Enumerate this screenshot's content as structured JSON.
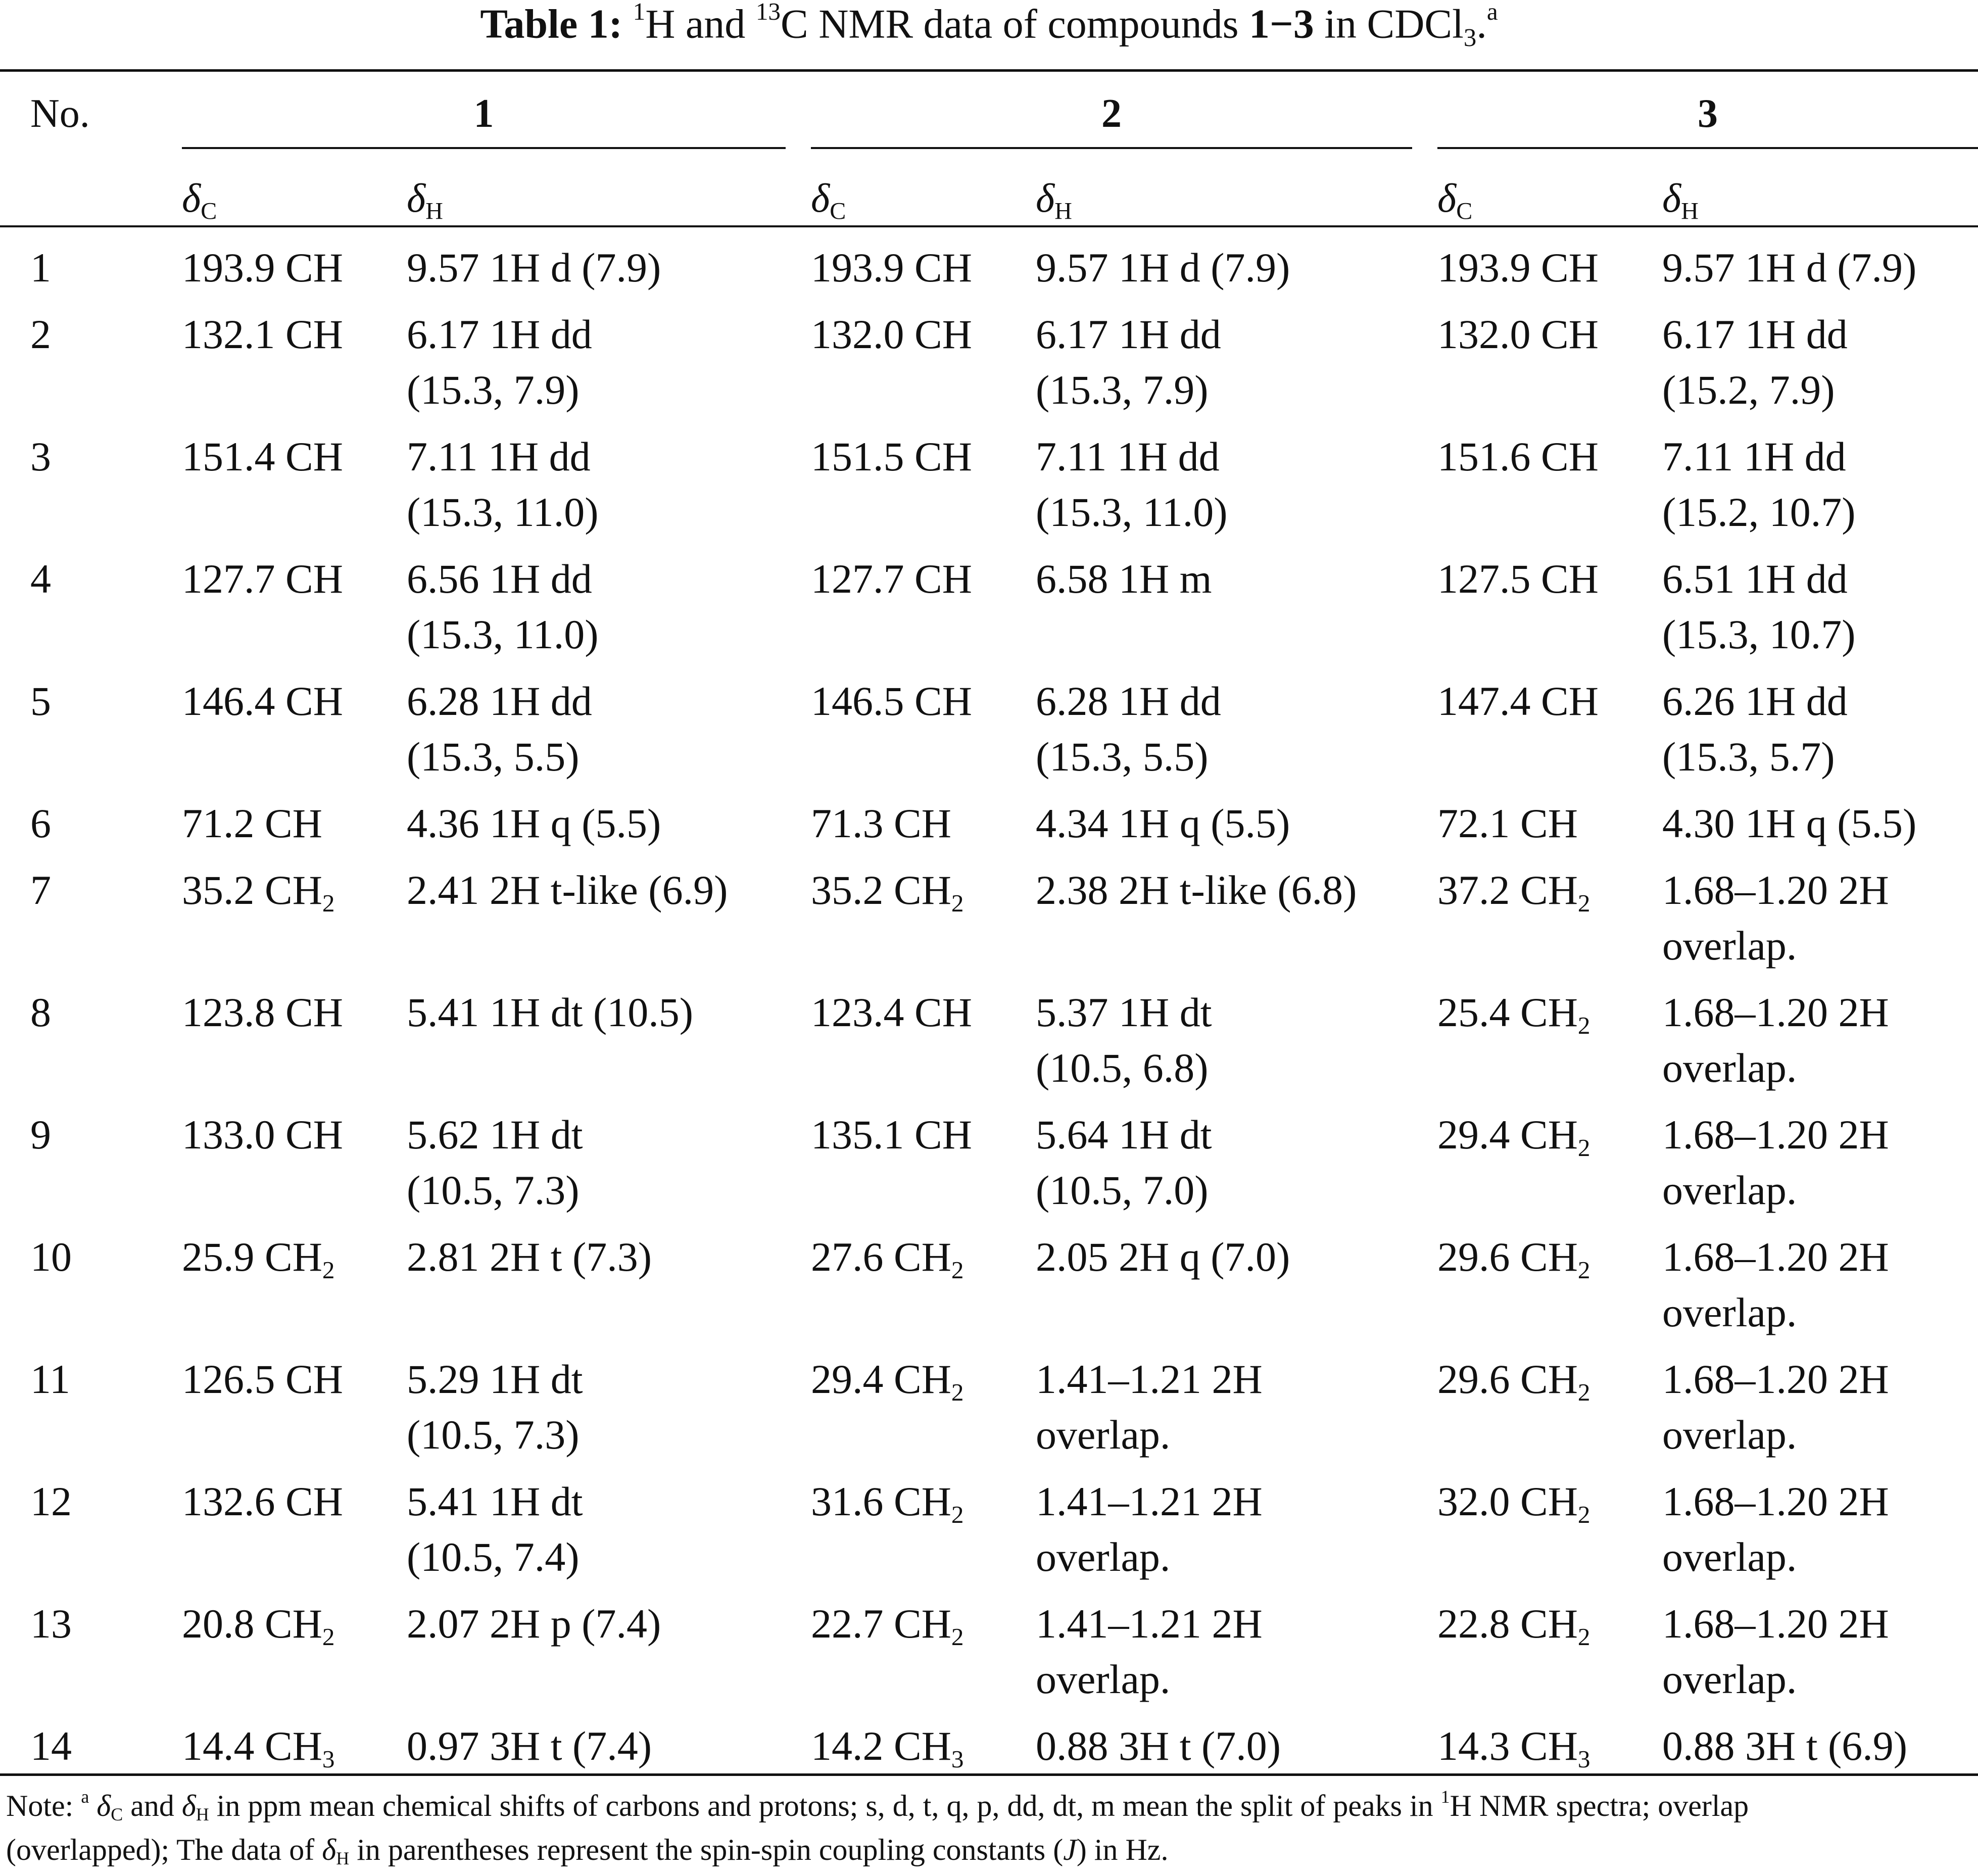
{
  "title": {
    "label": "Table 1:",
    "sup1": "1",
    "h_and": "H and ",
    "sup13": "13",
    "rest": "C NMR data of compounds ",
    "compounds": "1−3",
    "in": " in CDCl",
    "sub3": "3",
    "dot": ".",
    "fn": "a"
  },
  "header": {
    "no": "No.",
    "groups": [
      "1",
      "2",
      "3"
    ],
    "delta_symbol": "δ",
    "delta_c_sub": "C",
    "delta_h_sub": "H"
  },
  "rows": [
    {
      "no": "1",
      "c1": "193.9 CH",
      "h1": [
        "9.57 1H d (7.9)"
      ],
      "c2": "193.9 CH",
      "h2": [
        "9.57 1H d (7.9)"
      ],
      "c3": "193.9 CH",
      "h3": [
        "9.57 1H d (7.9)"
      ]
    },
    {
      "no": "2",
      "c1": "132.1 CH",
      "h1": [
        "6.17 1H dd",
        "(15.3, 7.9)"
      ],
      "c2": "132.0 CH",
      "h2": [
        "6.17 1H dd",
        "(15.3, 7.9)"
      ],
      "c3": "132.0 CH",
      "h3": [
        "6.17 1H dd",
        "(15.2, 7.9)"
      ]
    },
    {
      "no": "3",
      "c1": "151.4 CH",
      "h1": [
        "7.11 1H dd",
        "(15.3, 11.0)"
      ],
      "c2": "151.5 CH",
      "h2": [
        "7.11 1H dd",
        "(15.3, 11.0)"
      ],
      "c3": "151.6 CH",
      "h3": [
        "7.11 1H dd",
        "(15.2, 10.7)"
      ]
    },
    {
      "no": "4",
      "c1": "127.7 CH",
      "h1": [
        "6.56 1H dd",
        "(15.3, 11.0)"
      ],
      "c2": "127.7 CH",
      "h2": [
        "6.58 1H m"
      ],
      "c3": "127.5 CH",
      "h3": [
        "6.51 1H dd",
        "(15.3, 10.7)"
      ]
    },
    {
      "no": "5",
      "c1": "146.4 CH",
      "h1": [
        "6.28 1H dd",
        "(15.3, 5.5)"
      ],
      "c2": "146.5 CH",
      "h2": [
        "6.28 1H dd",
        "(15.3, 5.5)"
      ],
      "c3": "147.4 CH",
      "h3": [
        "6.26 1H dd",
        "(15.3, 5.7)"
      ]
    },
    {
      "no": "6",
      "c1": "71.2 CH",
      "h1": [
        "4.36 1H q (5.5)"
      ],
      "c2": "71.3 CH",
      "h2": [
        "4.34 1H q (5.5)"
      ],
      "c3": "72.1 CH",
      "h3": [
        "4.30 1H q (5.5)"
      ]
    },
    {
      "no": "7",
      "c1": "35.2 CH|2",
      "h1": [
        "2.41 2H t-like (6.9)"
      ],
      "c2": "35.2 CH|2",
      "h2": [
        "2.38 2H t-like (6.8)"
      ],
      "c3": "37.2 CH|2",
      "h3": [
        "1.68–1.20 2H",
        "overlap."
      ]
    },
    {
      "no": "8",
      "c1": "123.8 CH",
      "h1": [
        "5.41 1H dt (10.5)"
      ],
      "c2": "123.4 CH",
      "h2": [
        "5.37 1H dt",
        "(10.5, 6.8)"
      ],
      "c3": "25.4 CH|2",
      "h3": [
        "1.68–1.20 2H",
        "overlap."
      ]
    },
    {
      "no": "9",
      "c1": "133.0 CH",
      "h1": [
        "5.62 1H dt",
        "(10.5, 7.3)"
      ],
      "c2": "135.1 CH",
      "h2": [
        "5.64 1H dt",
        "(10.5, 7.0)"
      ],
      "c3": "29.4 CH|2",
      "h3": [
        "1.68–1.20 2H",
        "overlap."
      ]
    },
    {
      "no": "10",
      "c1": "25.9 CH|2",
      "h1": [
        "2.81 2H t (7.3)"
      ],
      "c2": "27.6 CH|2",
      "h2": [
        "2.05 2H q (7.0)"
      ],
      "c3": "29.6 CH|2",
      "h3": [
        "1.68–1.20 2H",
        "overlap."
      ]
    },
    {
      "no": "11",
      "c1": "126.5 CH",
      "h1": [
        "5.29 1H dt",
        "(10.5, 7.3)"
      ],
      "c2": "29.4 CH|2",
      "h2": [
        "1.41–1.21 2H",
        "overlap."
      ],
      "c3": "29.6 CH|2",
      "h3": [
        "1.68–1.20 2H",
        "overlap."
      ]
    },
    {
      "no": "12",
      "c1": "132.6 CH",
      "h1": [
        "5.41 1H dt",
        "(10.5, 7.4)"
      ],
      "c2": "31.6 CH|2",
      "h2": [
        "1.41–1.21 2H",
        "overlap."
      ],
      "c3": "32.0 CH|2",
      "h3": [
        "1.68–1.20 2H",
        "overlap."
      ]
    },
    {
      "no": "13",
      "c1": "20.8 CH|2",
      "h1": [
        "2.07 2H p (7.4)"
      ],
      "c2": "22.7 CH|2",
      "h2": [
        "1.41–1.21 2H",
        "overlap."
      ],
      "c3": "22.8 CH|2",
      "h3": [
        "1.68–1.20 2H",
        "overlap."
      ]
    },
    {
      "no": "14",
      "c1": "14.4 CH|3",
      "h1": [
        "0.97 3H t (7.4)"
      ],
      "c2": "14.2 CH|3",
      "h2": [
        "0.88 3H t (7.0)"
      ],
      "c3": "14.3 CH|3",
      "h3": [
        "0.88 3H t (6.9)"
      ]
    }
  ],
  "note": {
    "prefix": "Note: ",
    "sup_a": "a",
    "delta": "δ",
    "c": "C",
    "h": "H",
    "and": " and ",
    "text1": " in ppm mean chemical shifts of carbons and protons; s, d, t, q, p, dd, dt, m mean the split of peaks in ",
    "sup1": "1",
    "text2": "H NMR spectra; overlap",
    "text3": "(overlapped); The data of ",
    "text4": " in parentheses represent the spin-spin coupling constants (",
    "j": "J",
    "text5": ") in Hz."
  }
}
